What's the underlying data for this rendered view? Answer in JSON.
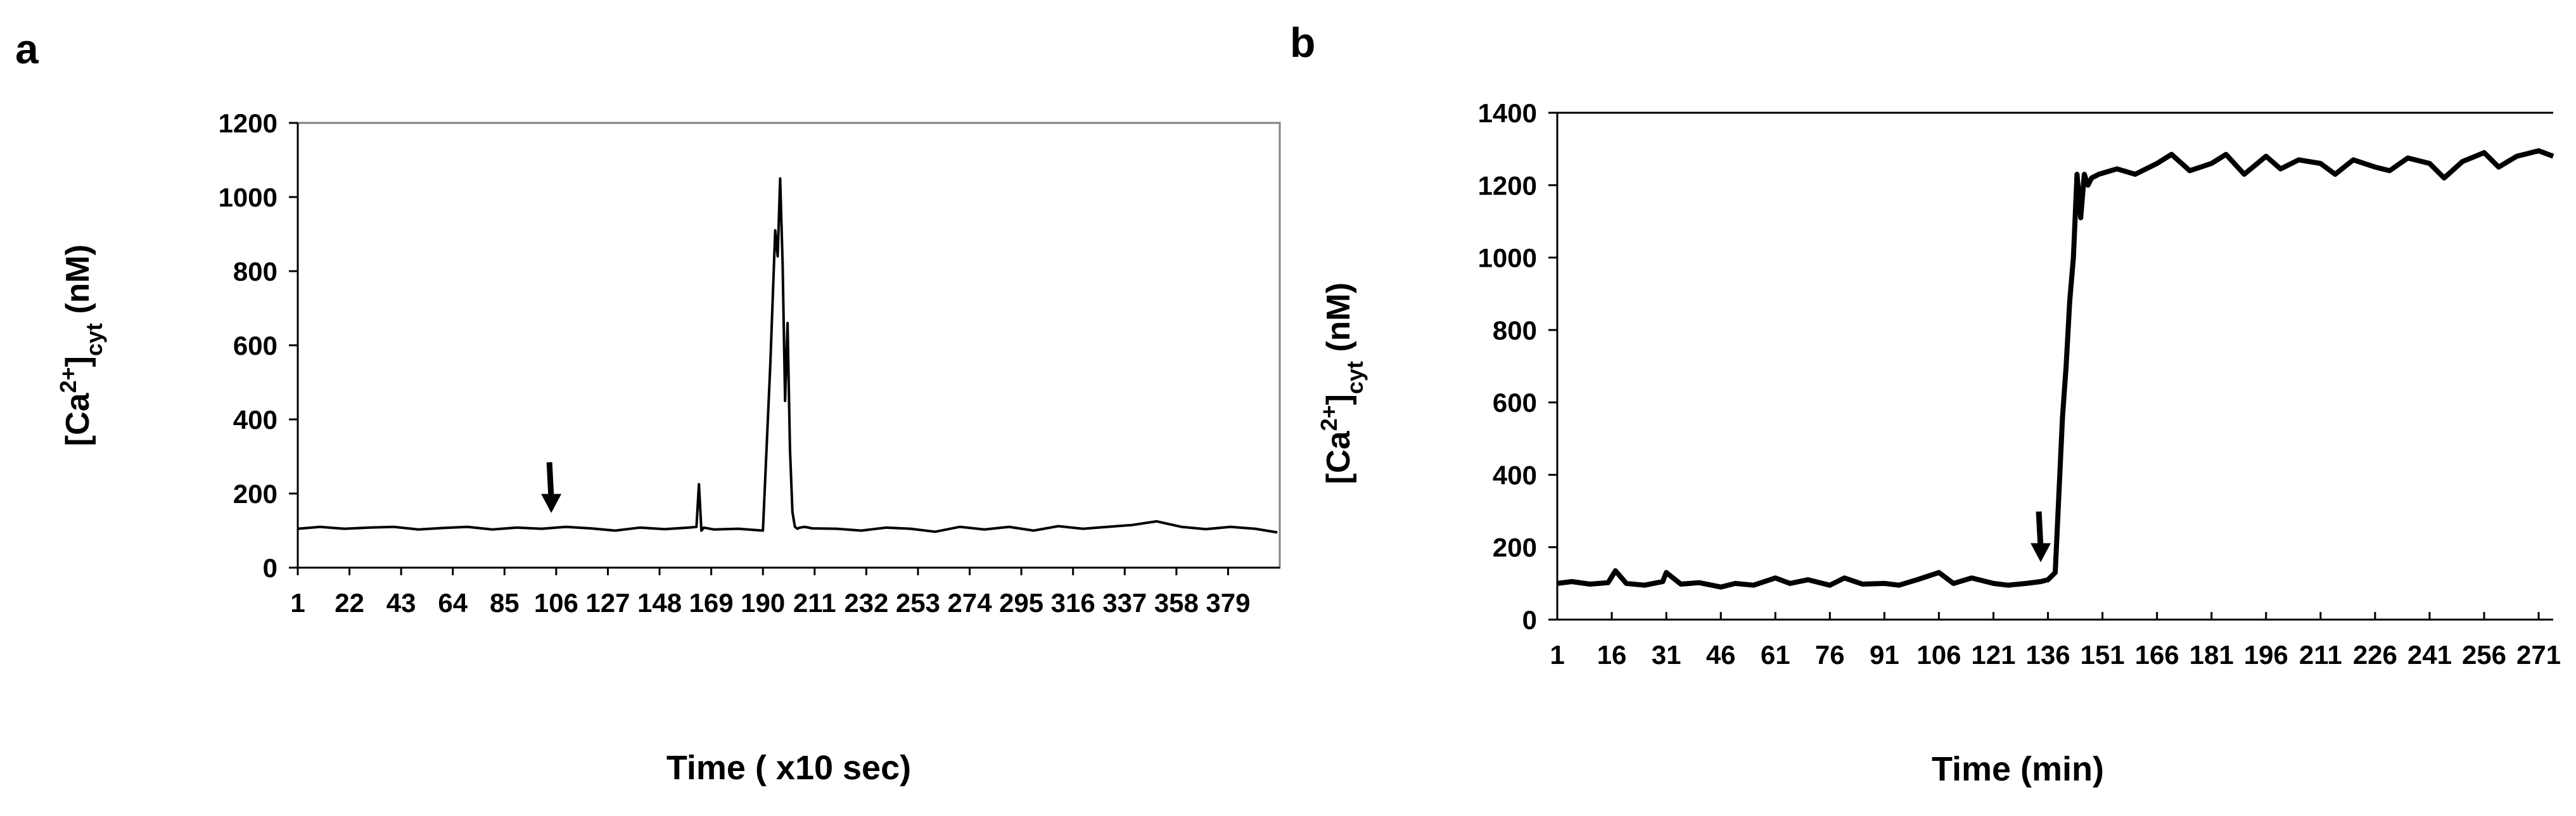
{
  "chart_data": [
    {
      "panel_label": "a",
      "type": "line",
      "xlabel": "Time ( x10 sec)",
      "ylabel": "[Ca2+]cyt (nM)",
      "ylim": [
        0,
        1200
      ],
      "yticks": [
        0,
        200,
        400,
        600,
        800,
        1000,
        1200
      ],
      "xlim": [
        1,
        400
      ],
      "xticks": [
        1,
        22,
        43,
        64,
        85,
        106,
        127,
        148,
        169,
        190,
        211,
        232,
        253,
        274,
        295,
        316,
        337,
        358,
        379
      ],
      "grid": false,
      "frame": "box",
      "color": "#000000",
      "arrow_at": {
        "x": 104,
        "y": 110
      },
      "series": [
        {
          "x": [
            1,
            10,
            20,
            30,
            40,
            50,
            60,
            70,
            80,
            90,
            100,
            110,
            120,
            130,
            140,
            150,
            160,
            163,
            164,
            165,
            166,
            170,
            180,
            190,
            193,
            195,
            196,
            197,
            198,
            199,
            200,
            201,
            202,
            203,
            204,
            205,
            207,
            210,
            220,
            230,
            240,
            250,
            260,
            270,
            280,
            290,
            300,
            310,
            320,
            330,
            340,
            350,
            360,
            370,
            380,
            390,
            399
          ],
          "y": [
            105,
            110,
            105,
            108,
            110,
            103,
            107,
            110,
            103,
            108,
            105,
            110,
            106,
            100,
            108,
            104,
            108,
            110,
            225,
            100,
            108,
            103,
            105,
            100,
            550,
            910,
            840,
            1050,
            820,
            450,
            660,
            320,
            150,
            110,
            105,
            108,
            110,
            106,
            105,
            100,
            108,
            105,
            97,
            110,
            103,
            110,
            100,
            112,
            105,
            110,
            115,
            125,
            110,
            104,
            110,
            105,
            95
          ]
        }
      ]
    },
    {
      "panel_label": "b",
      "type": "line",
      "xlabel": "Time (min)",
      "ylabel": "[Ca2+]cyt (nM)",
      "ylim": [
        0,
        1400
      ],
      "yticks": [
        0,
        200,
        400,
        600,
        800,
        1000,
        1200,
        1400
      ],
      "xlim": [
        1,
        275
      ],
      "xticks": [
        1,
        16,
        31,
        46,
        61,
        76,
        91,
        106,
        121,
        136,
        151,
        166,
        181,
        196,
        211,
        226,
        241,
        256,
        271
      ],
      "grid": false,
      "frame": "left-top",
      "color": "#000000",
      "arrow_at": {
        "x": 134,
        "y": 120
      },
      "series": [
        {
          "x": [
            1,
            5,
            10,
            15,
            17,
            20,
            25,
            30,
            31,
            35,
            40,
            46,
            50,
            55,
            61,
            65,
            70,
            76,
            80,
            85,
            91,
            95,
            100,
            106,
            110,
            115,
            121,
            125,
            130,
            134,
            136,
            138,
            140,
            141,
            142,
            143,
            144,
            145,
            146,
            147,
            148,
            150,
            155,
            160,
            166,
            170,
            175,
            181,
            185,
            190,
            196,
            200,
            205,
            211,
            215,
            220,
            226,
            230,
            235,
            241,
            245,
            250,
            256,
            260,
            265,
            271,
            275
          ],
          "y": [
            100,
            105,
            98,
            102,
            135,
            100,
            95,
            105,
            130,
            98,
            102,
            90,
            100,
            95,
            115,
            100,
            110,
            95,
            115,
            98,
            100,
            95,
            110,
            130,
            100,
            115,
            100,
            95,
            100,
            105,
            110,
            130,
            560,
            700,
            880,
            1000,
            1230,
            1110,
            1230,
            1200,
            1220,
            1230,
            1245,
            1230,
            1260,
            1285,
            1240,
            1260,
            1285,
            1230,
            1280,
            1245,
            1270,
            1260,
            1230,
            1270,
            1250,
            1240,
            1275,
            1260,
            1220,
            1265,
            1290,
            1250,
            1280,
            1295,
            1280
          ]
        }
      ]
    }
  ]
}
